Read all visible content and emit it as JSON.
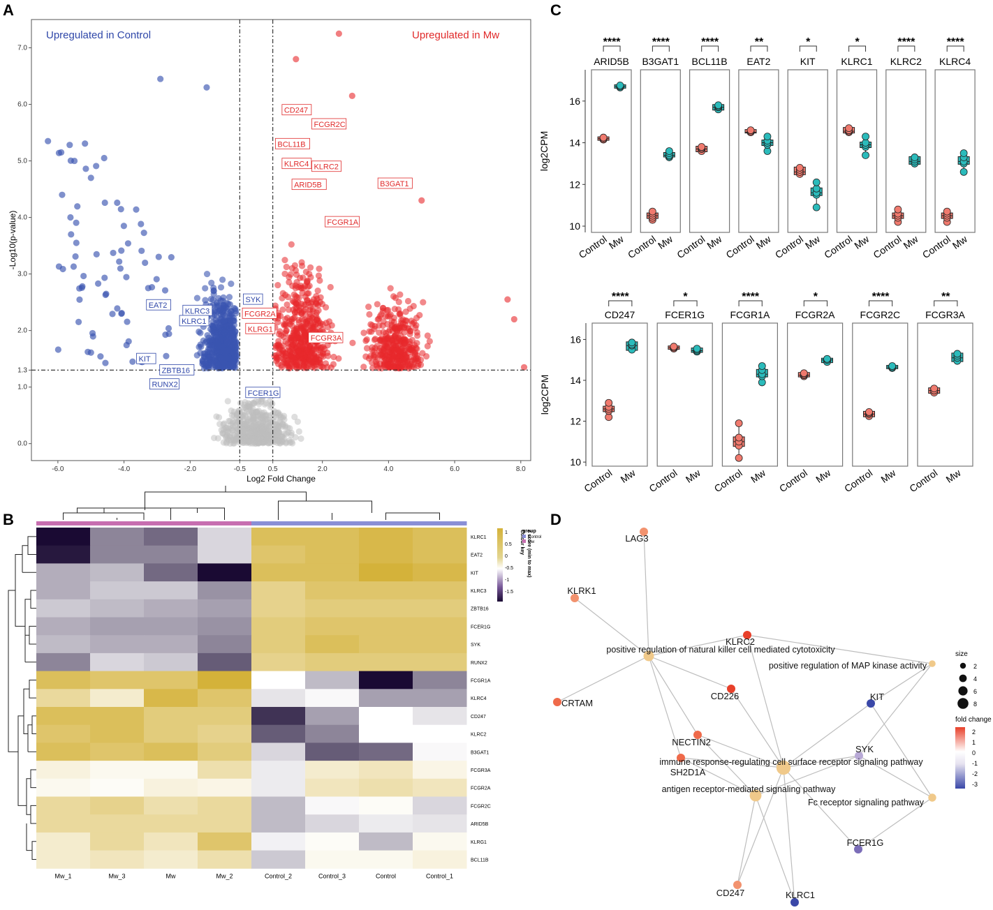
{
  "panels": {
    "a": "A",
    "b": "B",
    "c": "C",
    "d": "D"
  },
  "chart_data": [
    {
      "id": "volcano",
      "type": "scatter",
      "title_left": "Upregulated in Control",
      "title_right": "Upregulated in Mw",
      "xlabel": "Log2 Fold Change",
      "ylabel": "-Log10(p-value)",
      "xlim": [
        -6.8,
        8.3
      ],
      "ylim": [
        -0.3,
        7.5
      ],
      "xticks": [
        "-6.0",
        "-4.0",
        "-2.0",
        "-0.5",
        "0.5",
        "2.0",
        "4.0",
        "6.0",
        "8.0"
      ],
      "yticks": [
        "0.0",
        "1.0",
        "1.3",
        "2.0",
        "3.0",
        "4.0",
        "5.0",
        "6.0",
        "7.0"
      ],
      "thresholds": {
        "x": [
          -0.5,
          0.5
        ],
        "y": 1.3
      },
      "colors": {
        "down": "#3a55b0",
        "up": "#e8282b",
        "ns": "#bdbdbd"
      },
      "labels_down": [
        {
          "text": "SYK",
          "x": -0.37,
          "y": 2.5
        },
        {
          "text": "EAT2",
          "x": -3.3,
          "y": 2.4
        },
        {
          "text": "KLRC3",
          "x": -2.2,
          "y": 2.3
        },
        {
          "text": "KLRC1",
          "x": -2.3,
          "y": 2.12
        },
        {
          "text": "KIT",
          "x": -3.6,
          "y": 1.45
        },
        {
          "text": "ZBTB16",
          "x": -2.9,
          "y": 1.25
        },
        {
          "text": "RUNX2",
          "x": -3.2,
          "y": 1.0
        },
        {
          "text": "FCER1G",
          "x": -0.3,
          "y": 0.85
        }
      ],
      "labels_up": [
        {
          "text": "CD247",
          "x": 0.8,
          "y": 5.85
        },
        {
          "text": "FCGR2C",
          "x": 1.7,
          "y": 5.6
        },
        {
          "text": "BCL11B",
          "x": 0.6,
          "y": 5.25
        },
        {
          "text": "KLRC4",
          "x": 0.8,
          "y": 4.9
        },
        {
          "text": "KLRC2",
          "x": 1.7,
          "y": 4.85
        },
        {
          "text": "ARID5B",
          "x": 1.1,
          "y": 4.53
        },
        {
          "text": "B3GAT1",
          "x": 3.7,
          "y": 4.55
        },
        {
          "text": "FCGR1A",
          "x": 2.1,
          "y": 3.87
        },
        {
          "text": "FCGR2A",
          "x": -0.4,
          "y": 2.25
        },
        {
          "text": "KLRG1",
          "x": -0.3,
          "y": 1.98
        },
        {
          "text": "FCGR3A",
          "x": 1.6,
          "y": 1.82
        }
      ]
    },
    {
      "id": "heatmap",
      "type": "heatmap",
      "columns": [
        "Mw_1",
        "Mw_3",
        "Mw",
        "Mw_2",
        "Control_2",
        "Control_3",
        "Control",
        "Control_1"
      ],
      "groups": [
        "Mw",
        "Mw",
        "Mw",
        "Mw",
        "Control",
        "Control",
        "Control",
        "Control"
      ],
      "rows": [
        "KLRC1",
        "EAT2",
        "KIT",
        "KLRC3",
        "ZBTB16",
        "FCER1G",
        "SYK",
        "RUNX2",
        "FCGR1A",
        "KLRC4",
        "CD247",
        "KLRC2",
        "B3GAT1",
        "FCGR3A",
        "FCGR2A",
        "FCGR2C",
        "ARID5B",
        "KLRG1",
        "BCL11B"
      ],
      "values": [
        [
          -1.8,
          -0.9,
          -1.1,
          -0.3,
          1.0,
          1.0,
          1.1,
          1.0
        ],
        [
          -1.7,
          -0.9,
          -0.9,
          -0.3,
          0.9,
          1.0,
          1.1,
          1.0
        ],
        [
          -0.6,
          -0.5,
          -1.1,
          -1.9,
          1.0,
          1.0,
          1.2,
          1.1
        ],
        [
          -0.6,
          -0.4,
          -0.4,
          -0.8,
          0.7,
          0.9,
          0.9,
          0.9
        ],
        [
          -0.4,
          -0.5,
          -0.6,
          -0.7,
          0.7,
          0.8,
          0.8,
          0.8
        ],
        [
          -0.6,
          -0.7,
          -0.7,
          -0.8,
          0.8,
          0.9,
          0.9,
          0.9
        ],
        [
          -0.5,
          -0.6,
          -0.6,
          -0.9,
          0.8,
          1.0,
          0.9,
          0.9
        ],
        [
          -0.9,
          -0.3,
          -0.4,
          -1.2,
          0.7,
          0.8,
          0.8,
          0.8
        ],
        [
          1.0,
          0.9,
          0.9,
          1.2,
          0.0,
          -0.5,
          -1.8,
          -0.9
        ],
        [
          0.6,
          0.3,
          1.1,
          0.9,
          -0.2,
          -0.05,
          -0.7,
          -0.7
        ],
        [
          1.0,
          1.0,
          0.8,
          0.8,
          -1.5,
          -0.7,
          0.0,
          -0.2
        ],
        [
          0.9,
          1.0,
          0.8,
          0.7,
          -1.2,
          -0.9,
          0.0,
          0.0
        ],
        [
          1.0,
          0.9,
          1.0,
          0.8,
          -0.3,
          -1.2,
          -1.1,
          -0.05
        ],
        [
          0.2,
          0.1,
          0.1,
          0.5,
          -0.15,
          0.3,
          0.4,
          0.15
        ],
        [
          0.1,
          0.05,
          0.2,
          0.15,
          -0.15,
          0.4,
          0.5,
          0.4
        ],
        [
          0.6,
          0.7,
          0.5,
          0.6,
          -0.5,
          -0.05,
          0.05,
          -0.3
        ],
        [
          0.6,
          0.6,
          0.6,
          0.6,
          -0.5,
          -0.3,
          -0.15,
          -0.2
        ],
        [
          0.3,
          0.6,
          0.4,
          0.9,
          -0.1,
          0.05,
          -0.5,
          0.1
        ],
        [
          0.3,
          0.4,
          0.3,
          0.5,
          -0.4,
          0.1,
          0.1,
          0.2
        ]
      ],
      "colour_key": {
        "title": "Colour key",
        "subtitle": "Z score (min to max)",
        "ticks": [
          "1",
          "0.5",
          "0",
          "-0.5",
          "-1",
          "-1.5"
        ],
        "low": "#1a0a33",
        "mid": "#ffffff",
        "high": "#d4b23a"
      },
      "legend": {
        "title": "group",
        "items": [
          {
            "name": "Control",
            "color": "#8a8fd6"
          },
          {
            "name": "Mw",
            "color": "#c76eb0"
          }
        ]
      }
    },
    {
      "id": "boxplots",
      "type": "box",
      "ylabel": "log2CPM",
      "xcats": [
        "Control",
        "Mw"
      ],
      "colors": {
        "Control": "#f07a6e",
        "Mw": "#2bbbbb"
      },
      "rows": [
        {
          "ylim": [
            9.7,
            17.5
          ],
          "yticks": [
            "10",
            "12",
            "14",
            "16"
          ],
          "genes": [
            {
              "name": "ARID5B",
              "sig": "****",
              "control": [
                14.2,
                14.25,
                14.15,
                14.2
              ],
              "mw": [
                16.7,
                16.75,
                16.65,
                16.7
              ]
            },
            {
              "name": "B3GAT1",
              "sig": "****",
              "control": [
                10.3,
                10.5,
                10.7,
                10.4,
                10.6
              ],
              "mw": [
                13.3,
                13.4,
                13.5,
                13.6,
                13.35
              ]
            },
            {
              "name": "BCL11B",
              "sig": "****",
              "control": [
                13.6,
                13.7,
                13.8,
                13.75
              ],
              "mw": [
                15.6,
                15.7,
                15.8,
                15.75
              ]
            },
            {
              "name": "EAT2",
              "sig": "**",
              "control": [
                14.5,
                14.6,
                14.55,
                14.5
              ],
              "mw": [
                13.6,
                13.9,
                14.1,
                14.3,
                14.0
              ]
            },
            {
              "name": "KIT",
              "sig": "*",
              "control": [
                12.5,
                12.7,
                12.6,
                12.8
              ],
              "mw": [
                10.9,
                11.5,
                11.8,
                12.1,
                11.6
              ]
            },
            {
              "name": "KLRC1",
              "sig": "*",
              "control": [
                14.5,
                14.6,
                14.7,
                14.55
              ],
              "mw": [
                13.4,
                13.8,
                14.0,
                14.3,
                13.9
              ]
            },
            {
              "name": "KLRC2",
              "sig": "****",
              "control": [
                10.2,
                10.5,
                10.8,
                10.4,
                10.6
              ],
              "mw": [
                13.0,
                13.2,
                13.3,
                13.1
              ]
            },
            {
              "name": "KLRC4",
              "sig": "****",
              "control": [
                10.2,
                10.4,
                10.7,
                10.5,
                10.6
              ],
              "mw": [
                12.6,
                13.0,
                13.3,
                13.5,
                13.1
              ]
            }
          ]
        },
        {
          "ylim": [
            9.8,
            16.8
          ],
          "yticks": [
            "10",
            "12",
            "14",
            "16"
          ],
          "genes": [
            {
              "name": "CD247",
              "sig": "****",
              "control": [
                12.2,
                12.5,
                12.7,
                12.9,
                12.6
              ],
              "mw": [
                15.5,
                15.7,
                15.85,
                15.75
              ]
            },
            {
              "name": "FCER1G",
              "sig": "*",
              "control": [
                15.55,
                15.6,
                15.65,
                15.6
              ],
              "mw": [
                15.4,
                15.5,
                15.55,
                15.45
              ]
            },
            {
              "name": "FCGR1A",
              "sig": "****",
              "control": [
                10.2,
                10.8,
                11.2,
                11.9,
                11.0
              ],
              "mw": [
                13.9,
                14.2,
                14.5,
                14.7,
                14.3
              ]
            },
            {
              "name": "FCGR2A",
              "sig": "*",
              "control": [
                14.2,
                14.3,
                14.35,
                14.25
              ],
              "mw": [
                14.9,
                15.0,
                15.05,
                15.0
              ]
            },
            {
              "name": "FCGR2C",
              "sig": "****",
              "control": [
                12.25,
                12.35,
                12.45,
                12.4
              ],
              "mw": [
                14.6,
                14.65,
                14.7,
                14.65
              ]
            },
            {
              "name": "FCGR3A",
              "sig": "**",
              "control": [
                13.4,
                13.5,
                13.6,
                13.5
              ],
              "mw": [
                14.95,
                15.1,
                15.3,
                15.2
              ]
            }
          ]
        }
      ]
    },
    {
      "id": "network",
      "type": "network",
      "nodes": [
        {
          "id": "LAG3",
          "label": "LAG3",
          "kind": "gene",
          "fc": 1.3
        },
        {
          "id": "KLRK1",
          "label": "KLRK1",
          "kind": "gene",
          "fc": 1.5
        },
        {
          "id": "CRTAM",
          "label": "CRTAM",
          "kind": "gene",
          "fc": 1.7
        },
        {
          "id": "KLRC2",
          "label": "KLRC2",
          "kind": "gene",
          "fc": 2.3
        },
        {
          "id": "CD226",
          "label": "CD226",
          "kind": "gene",
          "fc": 2.4
        },
        {
          "id": "NECTIN2",
          "label": "NECTIN2",
          "kind": "gene",
          "fc": 1.6
        },
        {
          "id": "SH2D1A",
          "label": "SH2D1A",
          "kind": "gene",
          "fc": 2.0
        },
        {
          "id": "CD247",
          "label": "CD247",
          "kind": "gene",
          "fc": 1.5
        },
        {
          "id": "KLRC1",
          "label": "KLRC1",
          "kind": "gene",
          "fc": -2.6
        },
        {
          "id": "KIT",
          "label": "KIT",
          "kind": "gene",
          "fc": -3.0
        },
        {
          "id": "SYK",
          "label": "SYK",
          "kind": "gene",
          "fc": -0.6
        },
        {
          "id": "FCER1G",
          "label": "FCER1G",
          "kind": "gene",
          "fc": -1.3
        },
        {
          "id": "NK",
          "label": "positive regulation of natural killer cell mediated cytotoxicity",
          "kind": "term",
          "size": 5
        },
        {
          "id": "MAPK",
          "label": "positive regulation of MAP kinase activity",
          "kind": "term",
          "size": 2
        },
        {
          "id": "IMM",
          "label": "immune response-regulating cell surface receptor signaling pathway",
          "kind": "term",
          "size": 8
        },
        {
          "id": "AG",
          "label": "antigen receptor-mediated signaling pathway",
          "kind": "term",
          "size": 6
        },
        {
          "id": "FC",
          "label": "Fc receptor signaling pathway",
          "kind": "term",
          "size": 3
        }
      ],
      "edges": [
        [
          "LAG3",
          "NK"
        ],
        [
          "KLRK1",
          "NK"
        ],
        [
          "CRTAM",
          "NK"
        ],
        [
          "KLRC2",
          "NK"
        ],
        [
          "CD226",
          "NK"
        ],
        [
          "NECTIN2",
          "NK"
        ],
        [
          "SH2D1A",
          "NK"
        ],
        [
          "KLRC2",
          "IMM"
        ],
        [
          "CD226",
          "IMM"
        ],
        [
          "NECTIN2",
          "IMM"
        ],
        [
          "SH2D1A",
          "IMM"
        ],
        [
          "CD247",
          "IMM"
        ],
        [
          "KLRC1",
          "IMM"
        ],
        [
          "KIT",
          "IMM"
        ],
        [
          "SYK",
          "IMM"
        ],
        [
          "FCER1G",
          "IMM"
        ],
        [
          "NECTIN2",
          "AG"
        ],
        [
          "CD247",
          "AG"
        ],
        [
          "KLRC1",
          "AG"
        ],
        [
          "SYK",
          "AG"
        ],
        [
          "SH2D1A",
          "AG"
        ],
        [
          "KIT",
          "MAPK"
        ],
        [
          "SYK",
          "MAPK"
        ],
        [
          "KIT",
          "FC"
        ],
        [
          "SYK",
          "FC"
        ],
        [
          "FCER1G",
          "FC"
        ],
        [
          "KLRC2",
          "MAPK"
        ]
      ],
      "size_legend": {
        "title": "size",
        "items": [
          "2",
          "4",
          "6",
          "8"
        ]
      },
      "fc_legend": {
        "title": "fold change",
        "ticks": [
          "2",
          "1",
          "0",
          "-1",
          "-2",
          "-3"
        ]
      }
    }
  ]
}
